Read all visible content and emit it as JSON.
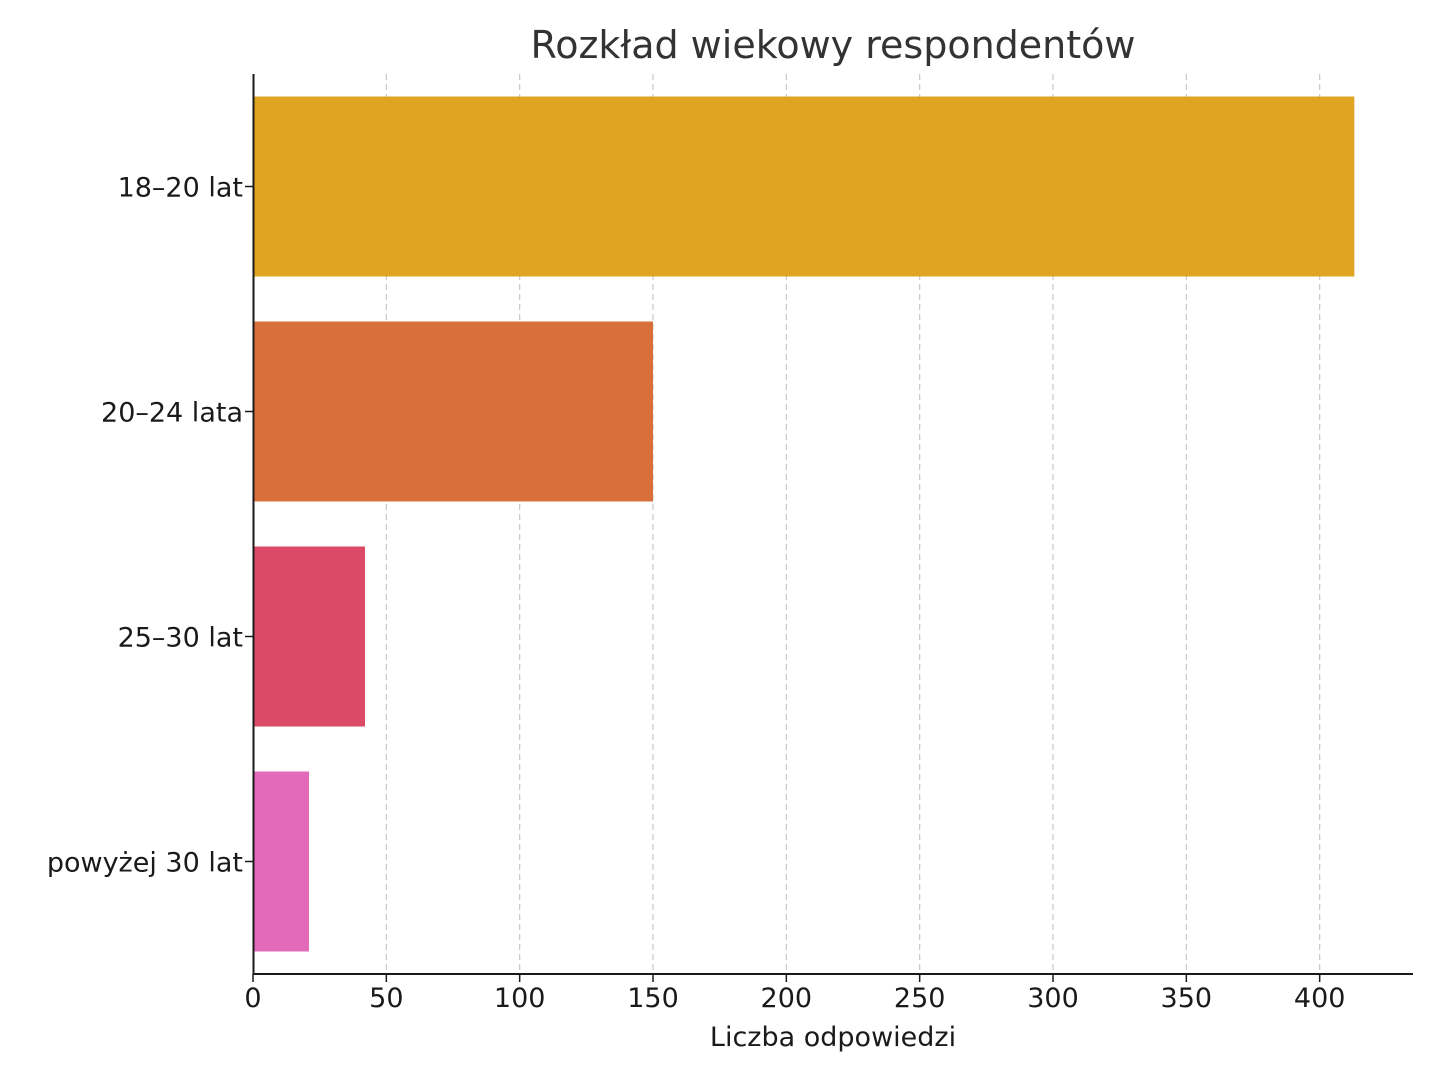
{
  "chart_data": {
    "type": "bar",
    "orientation": "horizontal",
    "title": "Rozkład wiekowy respondentów",
    "xlabel": "Liczba odpowiedzi",
    "ylabel": "",
    "categories": [
      "18–20 lat",
      "20–24 lata",
      "25–30 lat",
      "powyżej 30 lat"
    ],
    "values": [
      413,
      150,
      42,
      21
    ],
    "colors": [
      "#DEA422",
      "#D9703B",
      "#DB4B68",
      "#E36AB9"
    ],
    "xlim": [
      0,
      435
    ],
    "xticks": [
      0,
      50,
      100,
      150,
      200,
      250,
      300,
      350,
      400
    ],
    "grid": "x",
    "legend": "none"
  }
}
